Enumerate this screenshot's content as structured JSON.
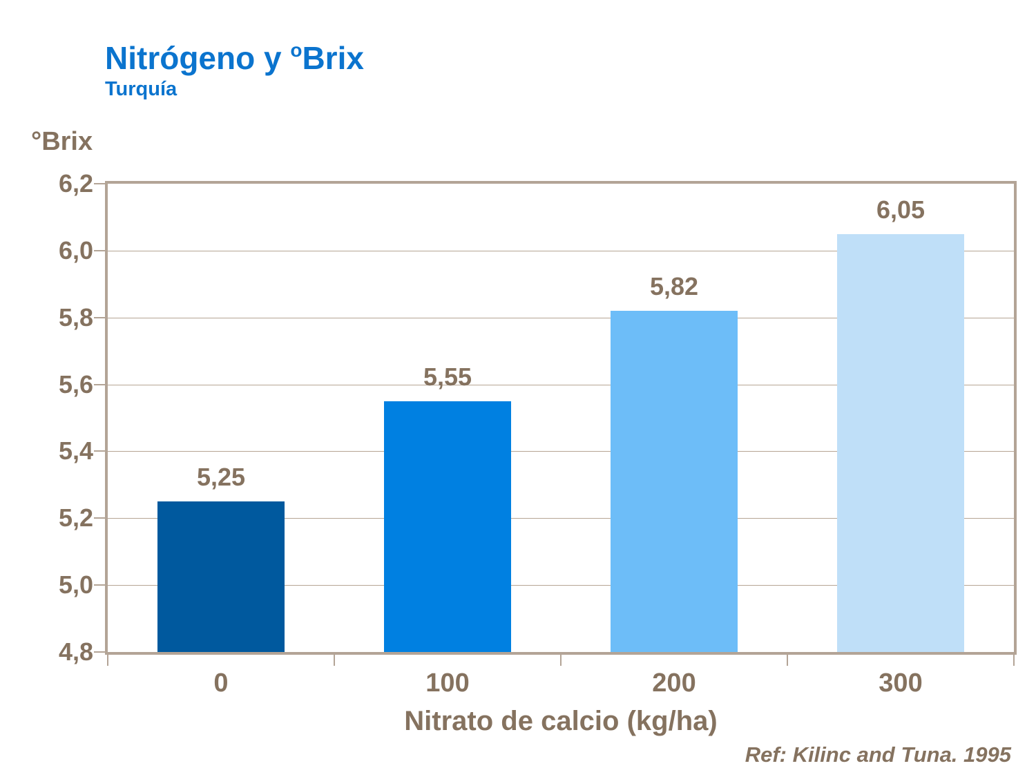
{
  "title": {
    "prefix": "Nitrógeno y ",
    "sup": "o",
    "suffix": "Brix",
    "subtitle": "Turquía",
    "color": "#0b74ce"
  },
  "reference": "Ref: Kilinc and Tuna. 1995",
  "chart_data": {
    "type": "bar",
    "title": "Nitrógeno y ºBrix",
    "subtitle": "Turquía",
    "xlabel": "Nitrato de calcio (kg/ha)",
    "ylabel": "°Brix",
    "categories": [
      "0",
      "100",
      "200",
      "300"
    ],
    "values": [
      5.25,
      5.55,
      5.82,
      6.05
    ],
    "value_labels": [
      "5,25",
      "5,55",
      "5,82",
      "6,05"
    ],
    "ylim": [
      4.8,
      6.2
    ],
    "ytick_step": 0.2,
    "ytick_labels": [
      "6,2",
      "6,0",
      "5,8",
      "5,6",
      "5,4",
      "5,2",
      "5,0",
      "4,8"
    ],
    "grid": true,
    "legend": "none",
    "bar_colors": [
      "#00599e",
      "#0080e1",
      "#6dbdf8",
      "#bfdff8"
    ],
    "text_color": "#85725f",
    "axis_color": "#b3a496",
    "title_color": "#0b74ce"
  }
}
